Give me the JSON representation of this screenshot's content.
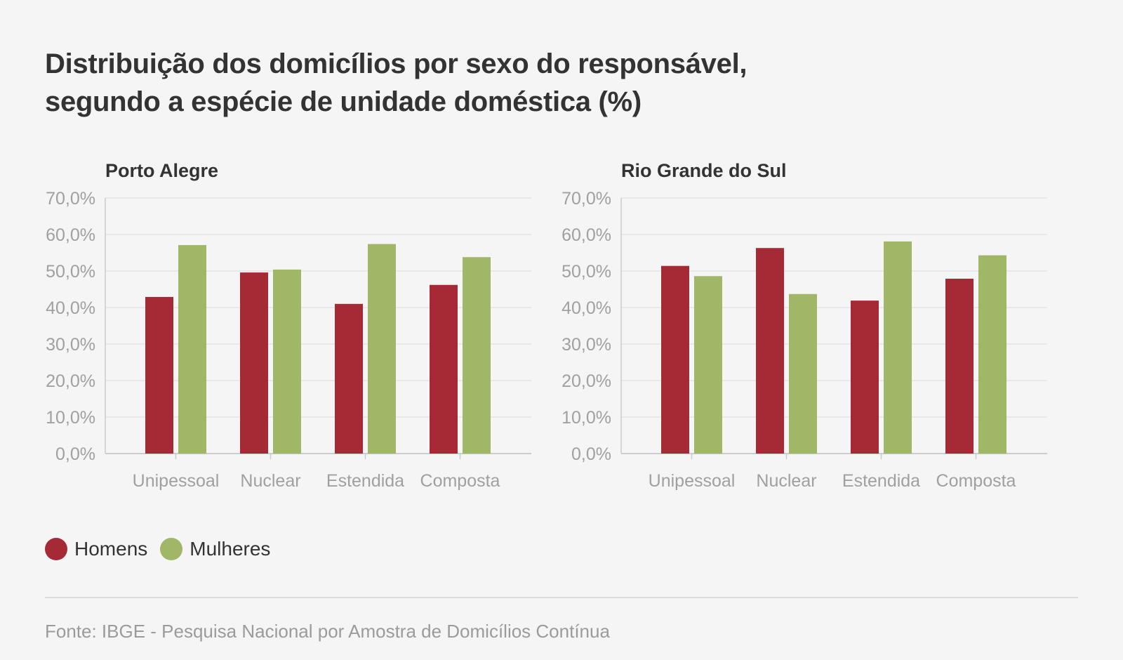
{
  "title": {
    "line1": "Distribuição dos domicílios por sexo do responsável,",
    "line2": "segundo a espécie de unidade doméstica (%)"
  },
  "legend": {
    "homens": "Homens",
    "mulheres": "Mulheres"
  },
  "colors": {
    "homens": "#a52a35",
    "mulheres": "#9fb766",
    "grid": "#e3e3e3",
    "axis": "#cccccc",
    "tick_label": "#a0a0a0"
  },
  "source": "Fonte: IBGE - Pesquisa Nacional por Amostra de Domicílios Contínua",
  "chart_data": [
    {
      "type": "bar",
      "title": "Porto Alegre",
      "categories": [
        "Unipessoal",
        "Nuclear",
        "Estendida",
        "Composta"
      ],
      "yticks": [
        "0,0%",
        "10,0%",
        "20,0%",
        "30,0%",
        "40,0%",
        "50,0%",
        "60,0%",
        "70,0%"
      ],
      "ylim": [
        0,
        70
      ],
      "grid": true,
      "series": [
        {
          "name": "Homens",
          "values": [
            42.9,
            49.6,
            41.0,
            46.2
          ]
        },
        {
          "name": "Mulheres",
          "values": [
            57.1,
            50.4,
            57.4,
            53.8
          ]
        }
      ]
    },
    {
      "type": "bar",
      "title": "Rio Grande do Sul",
      "categories": [
        "Unipessoal",
        "Nuclear",
        "Estendida",
        "Composta"
      ],
      "yticks": [
        "0,0%",
        "10,0%",
        "20,0%",
        "30,0%",
        "40,0%",
        "50,0%",
        "60,0%",
        "70,0%"
      ],
      "ylim": [
        0,
        70
      ],
      "grid": true,
      "series": [
        {
          "name": "Homens",
          "values": [
            51.4,
            56.3,
            41.9,
            47.9
          ]
        },
        {
          "name": "Mulheres",
          "values": [
            48.6,
            43.7,
            58.1,
            54.3
          ]
        }
      ]
    }
  ]
}
